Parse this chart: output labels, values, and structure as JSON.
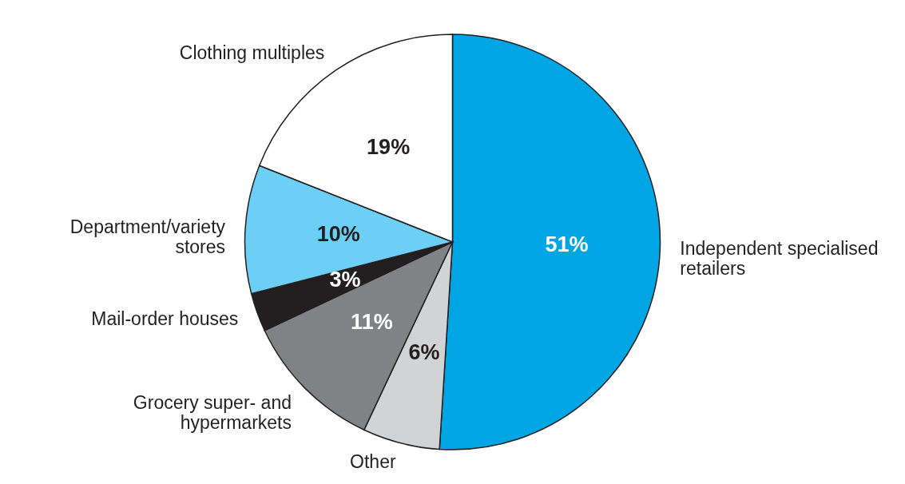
{
  "chart_data": {
    "type": "pie",
    "categories": [
      "Independent specialised retailers",
      "Other",
      "Grocery super- and hypermarkets",
      "Mail-order houses",
      "Department/variety stores",
      "Clothing multiples"
    ],
    "values": [
      51,
      6,
      11,
      3,
      10,
      19
    ],
    "colors": [
      "#00a5e3",
      "#d1d3d4",
      "#808285",
      "#231f20",
      "#6dcff6",
      "#ffffff"
    ],
    "value_labels": [
      "51%",
      "6%",
      "11%",
      "3%",
      "10%",
      "19%"
    ]
  }
}
